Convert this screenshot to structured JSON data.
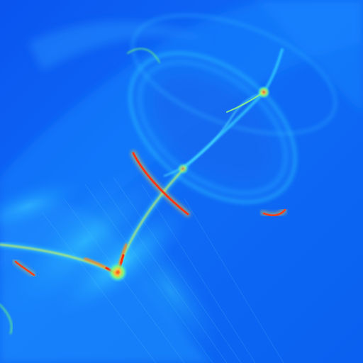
{
  "image": {
    "subject": "fractal-attractor",
    "palette": {
      "deep_blue": "#0a4ff0",
      "mid_blue": "#1a7cff",
      "light_blue": "#2aa8ff",
      "cyan": "#35d8ff",
      "green": "#6dff7a",
      "yellow": "#f4ff3a",
      "orange": "#ff8a1a",
      "red": "#ff2a0a"
    }
  }
}
